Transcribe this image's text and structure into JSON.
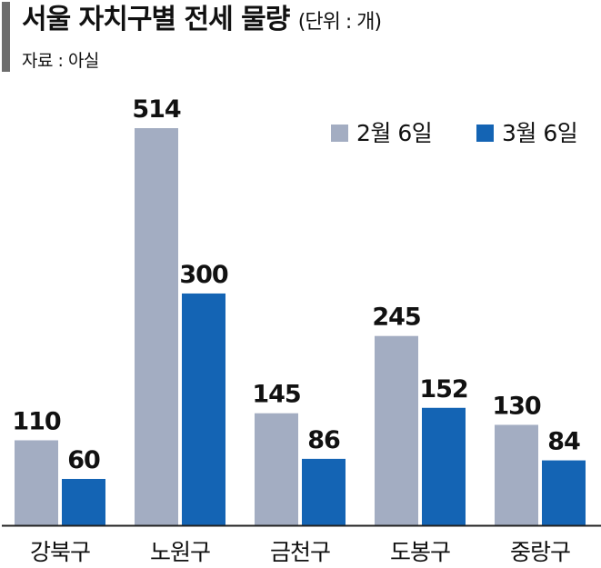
{
  "header": {
    "title": "서울 자치구별 전세 물량",
    "unit": "(단위 : 개)",
    "source": "자료 : 아실"
  },
  "colors": {
    "series_feb": "#a3adc2",
    "series_mar": "#1464b4",
    "title_bar": "#6d6d6d",
    "axis": "#222222"
  },
  "chart_data": {
    "type": "bar",
    "title": "서울 자치구별 전세 물량",
    "unit": "(단위 : 개)",
    "categories": [
      "강북구",
      "노원구",
      "금천구",
      "도봉구",
      "중랑구"
    ],
    "series": [
      {
        "name": "2월 6일",
        "values": [
          110,
          514,
          145,
          245,
          130
        ]
      },
      {
        "name": "3월 6일",
        "values": [
          60,
          300,
          86,
          152,
          84
        ]
      }
    ],
    "legend_position": "top-right",
    "grid": false,
    "data_labels": true
  }
}
